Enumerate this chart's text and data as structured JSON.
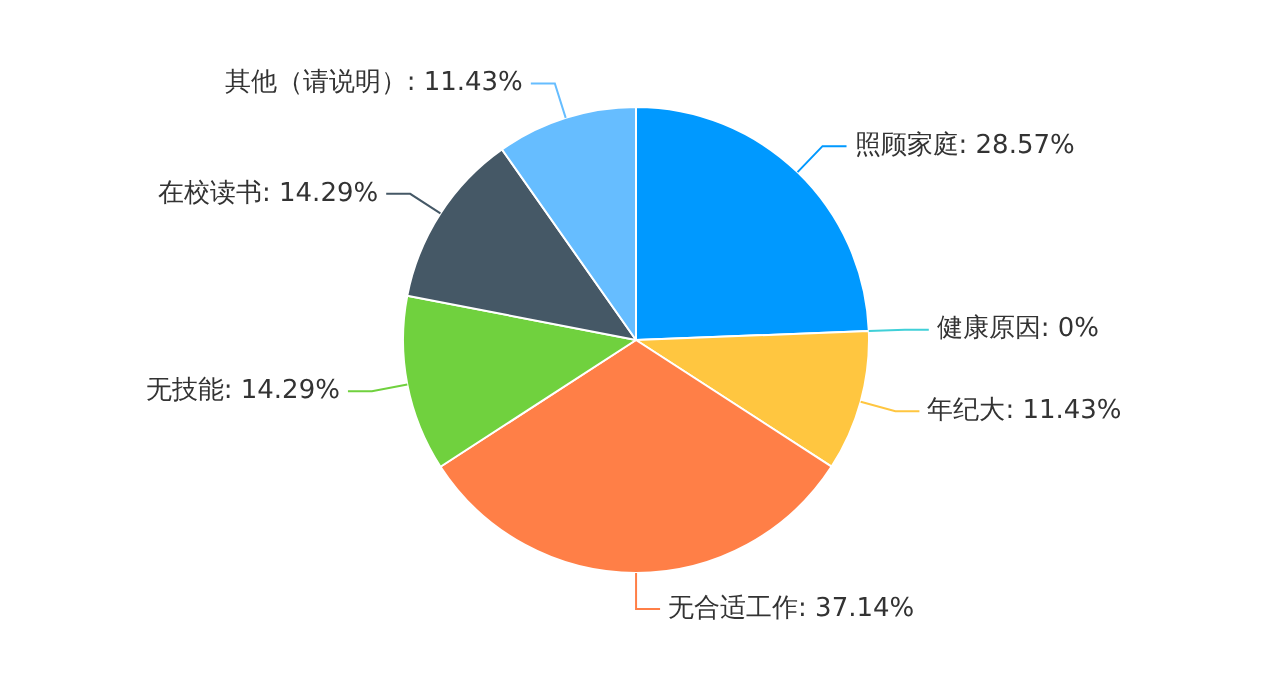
{
  "chart_data": {
    "type": "pie",
    "categories": [
      "照顾家庭",
      "健康原因",
      "年纪大",
      "无合适工作",
      "无技能",
      "在校读书",
      "其他（请说明）"
    ],
    "values": [
      28.57,
      0,
      11.43,
      37.14,
      14.29,
      14.29,
      11.43
    ],
    "value_labels": [
      "28.57%",
      "0%",
      "11.43%",
      "37.14%",
      "14.29%",
      "14.29%",
      "11.43%"
    ],
    "colors": [
      "#0099ff",
      "#40d0d8",
      "#ffc640",
      "#ff7f47",
      "#70d13e",
      "#455866",
      "#66bdff"
    ]
  }
}
